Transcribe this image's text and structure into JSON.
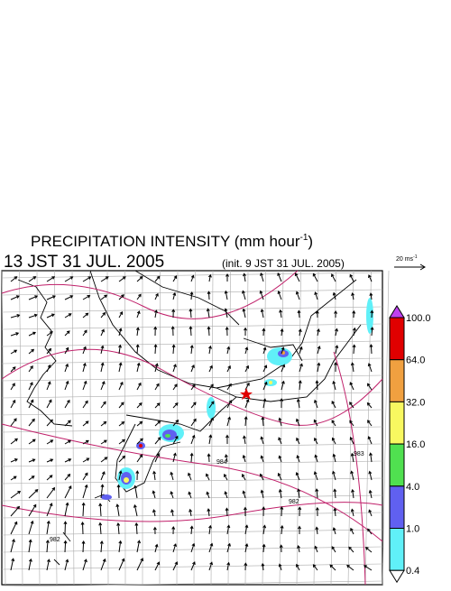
{
  "title": {
    "main": "PRECIPITATION INTENSITY (mm hour",
    "exponent": "-1",
    "end": ")"
  },
  "time": "13 JST 31 JUL. 2005",
  "init": "(init. 9 JST 31 JUL. 2005)",
  "vector_scale": {
    "main": "20 ms",
    "exponent": "-1"
  },
  "colorbar": {
    "labels": [
      "100.0",
      "64.0",
      "32.0",
      "16.0",
      "4.0",
      "1.0",
      "0.4"
    ],
    "colors": [
      "#e00000",
      "#f0a040",
      "#f8f860",
      "#50e050",
      "#6060f0",
      "#60f0f8"
    ],
    "over_color": "#c040f0",
    "under_color": "#ffffff"
  },
  "contour_labels": [
    "984",
    "982",
    "982",
    "983"
  ]
}
